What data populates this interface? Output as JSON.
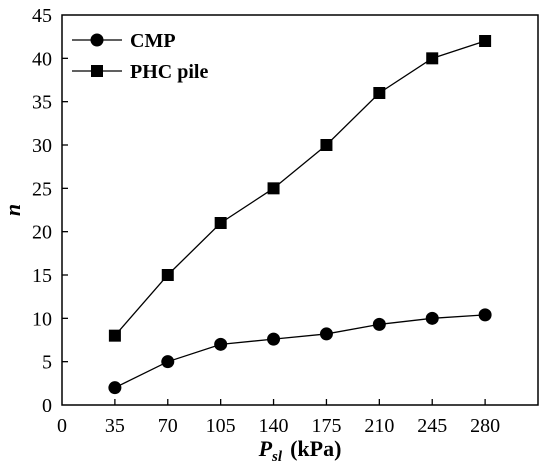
{
  "chart_data": {
    "type": "line",
    "x": [
      35,
      70,
      105,
      140,
      175,
      210,
      245,
      280
    ],
    "x_tick_labels": [
      "0",
      "35",
      "70",
      "105",
      "140",
      "175",
      "210",
      "245",
      "280"
    ],
    "y_tick_labels": [
      "0",
      "5",
      "10",
      "15",
      "20",
      "25",
      "30",
      "35",
      "40",
      "45"
    ],
    "xlim": [
      0,
      315
    ],
    "ylim": [
      0,
      45
    ],
    "xlabel": {
      "main": "P",
      "sub": "sl",
      "unit": "(kPa)"
    },
    "ylabel": "n",
    "grid": false,
    "legend_position": "top-left",
    "series": [
      {
        "name": "CMP",
        "marker": "circle",
        "color": "#000000",
        "values": [
          2,
          5,
          7,
          7.6,
          8.2,
          9.3,
          10,
          10.4
        ]
      },
      {
        "name": "PHC pile",
        "marker": "square",
        "color": "#000000",
        "values": [
          8,
          15,
          21,
          25,
          30,
          36,
          40,
          42
        ]
      }
    ]
  }
}
